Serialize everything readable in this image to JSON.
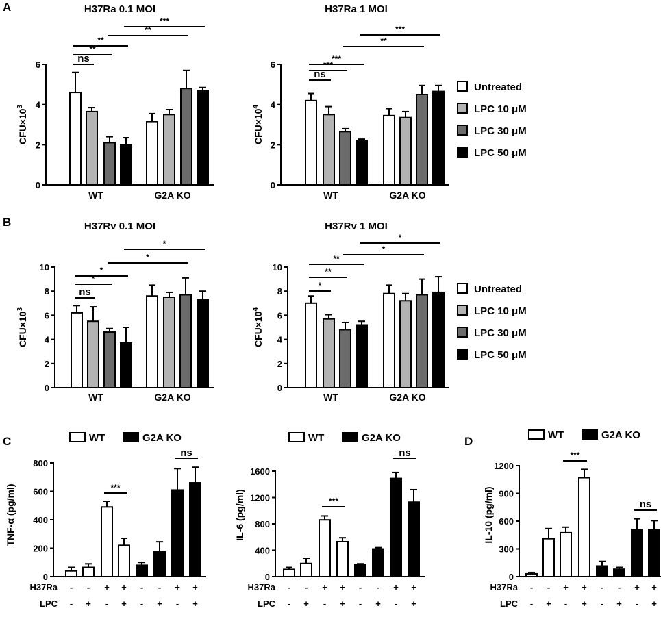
{
  "panel_labels": [
    "A",
    "B",
    "C",
    "D"
  ],
  "legend_AB": {
    "entries": [
      "Untreated",
      "LPC 10 μM",
      "LPC 30 μM",
      "LPC 50 μM"
    ],
    "colors": [
      "#ffffff",
      "#b3b3b3",
      "#6b6b6b",
      "#000000"
    ]
  },
  "legend_CD": {
    "entries": [
      "WT",
      "G2A KO"
    ],
    "colors": [
      "#ffffff",
      "#000000"
    ]
  },
  "conditions": {
    "row_labels": [
      "H37Ra",
      "LPC"
    ],
    "h37ra": [
      "-",
      "-",
      "+",
      "+",
      "-",
      "-",
      "+",
      "+"
    ],
    "lpc": [
      "-",
      "+",
      "-",
      "+",
      "-",
      "+",
      "-",
      "+"
    ]
  },
  "chart_data": [
    {
      "id": "A1",
      "type": "bar",
      "title": "H37Ra 0.1 MOI",
      "ylabel": "CFU×10",
      "ylabel_exp": "3",
      "ylim": [
        0,
        6
      ],
      "yticks": [
        "0",
        "2",
        "4",
        "6"
      ],
      "groups": [
        "WT",
        "G2A KO"
      ],
      "series": [
        {
          "name": "Untreated",
          "values": [
            4.6,
            3.15
          ],
          "errors": [
            1.0,
            0.4
          ]
        },
        {
          "name": "LPC 10 μM",
          "values": [
            3.65,
            3.5
          ],
          "errors": [
            0.2,
            0.25
          ]
        },
        {
          "name": "LPC 30 μM",
          "values": [
            2.1,
            4.8
          ],
          "errors": [
            0.3,
            0.9
          ]
        },
        {
          "name": "LPC 50 μM",
          "values": [
            2.0,
            4.7
          ],
          "errors": [
            0.35,
            0.15
          ]
        }
      ],
      "significance": [
        {
          "a": 0,
          "b": 1,
          "label": "ns"
        },
        {
          "a": 0,
          "b": 2,
          "label": "**"
        },
        {
          "a": 0,
          "b": 3,
          "label": "**"
        },
        {
          "a": 2,
          "b": 6,
          "label": "**"
        },
        {
          "a": 3,
          "b": 7,
          "label": "***"
        }
      ]
    },
    {
      "id": "A2",
      "type": "bar",
      "title": "H37Ra 1 MOI",
      "ylabel": "CFU×10",
      "ylabel_exp": "4",
      "ylim": [
        0,
        6
      ],
      "yticks": [
        "0",
        "2",
        "4",
        "6"
      ],
      "groups": [
        "WT",
        "G2A KO"
      ],
      "series": [
        {
          "name": "Untreated",
          "values": [
            4.2,
            3.45
          ],
          "errors": [
            0.35,
            0.35
          ]
        },
        {
          "name": "LPC 10 μM",
          "values": [
            3.5,
            3.35
          ],
          "errors": [
            0.4,
            0.3
          ]
        },
        {
          "name": "LPC 30 μM",
          "values": [
            2.65,
            4.5
          ],
          "errors": [
            0.15,
            0.45
          ]
        },
        {
          "name": "LPC 50 μM",
          "values": [
            2.2,
            4.65
          ],
          "errors": [
            0.08,
            0.3
          ]
        }
      ],
      "significance": [
        {
          "a": 0,
          "b": 1,
          "label": "ns"
        },
        {
          "a": 0,
          "b": 2,
          "label": "***"
        },
        {
          "a": 0,
          "b": 3,
          "label": "***"
        },
        {
          "a": 2,
          "b": 6,
          "label": "**"
        },
        {
          "a": 3,
          "b": 7,
          "label": "***"
        }
      ]
    },
    {
      "id": "B1",
      "type": "bar",
      "title": "H37Rv 0.1 MOI",
      "ylabel": "CFU×10",
      "ylabel_exp": "3",
      "ylim": [
        0,
        10
      ],
      "yticks": [
        "0",
        "2",
        "4",
        "6",
        "8",
        "10"
      ],
      "groups": [
        "WT",
        "G2A KO"
      ],
      "series": [
        {
          "name": "Untreated",
          "values": [
            6.2,
            7.6
          ],
          "errors": [
            0.6,
            0.9
          ]
        },
        {
          "name": "LPC 10 μM",
          "values": [
            5.5,
            7.5
          ],
          "errors": [
            1.2,
            0.4
          ]
        },
        {
          "name": "LPC 30 μM",
          "values": [
            4.6,
            7.7
          ],
          "errors": [
            0.3,
            1.4
          ]
        },
        {
          "name": "LPC 50 μM",
          "values": [
            3.7,
            7.3
          ],
          "errors": [
            1.3,
            0.7
          ]
        }
      ],
      "significance": [
        {
          "a": 0,
          "b": 1,
          "label": "ns"
        },
        {
          "a": 0,
          "b": 2,
          "label": "*"
        },
        {
          "a": 0,
          "b": 3,
          "label": "*"
        },
        {
          "a": 2,
          "b": 6,
          "label": "*"
        },
        {
          "a": 3,
          "b": 7,
          "label": "*"
        }
      ]
    },
    {
      "id": "B2",
      "type": "bar",
      "title": "H37Rv 1 MOI",
      "ylabel": "CFU×10",
      "ylabel_exp": "4",
      "ylim": [
        0,
        10
      ],
      "yticks": [
        "0",
        "2",
        "4",
        "6",
        "8",
        "10"
      ],
      "groups": [
        "WT",
        "G2A KO"
      ],
      "series": [
        {
          "name": "Untreated",
          "values": [
            7.0,
            7.8
          ],
          "errors": [
            0.6,
            0.7
          ]
        },
        {
          "name": "LPC 10 μM",
          "values": [
            5.7,
            7.2
          ],
          "errors": [
            0.35,
            0.6
          ]
        },
        {
          "name": "LPC 30 μM",
          "values": [
            4.8,
            7.7
          ],
          "errors": [
            0.6,
            1.3
          ]
        },
        {
          "name": "LPC 50 μM",
          "values": [
            5.2,
            7.9
          ],
          "errors": [
            0.3,
            1.3
          ]
        }
      ],
      "significance": [
        {
          "a": 0,
          "b": 1,
          "label": "*"
        },
        {
          "a": 0,
          "b": 2,
          "label": "**"
        },
        {
          "a": 0,
          "b": 3,
          "label": "**"
        },
        {
          "a": 2,
          "b": 6,
          "label": "*"
        },
        {
          "a": 3,
          "b": 7,
          "label": "*"
        }
      ]
    },
    {
      "id": "C1",
      "type": "bar",
      "title": "",
      "ylabel": "TNF-α (pg/ml)",
      "ylim": [
        0,
        800
      ],
      "yticks": [
        "0",
        "200",
        "400",
        "600",
        "800"
      ],
      "series": [
        {
          "name": "WT",
          "values": [
            40,
            65,
            490,
            220
          ],
          "errors": [
            25,
            25,
            40,
            50
          ]
        },
        {
          "name": "G2A KO",
          "values": [
            80,
            175,
            610,
            660
          ],
          "errors": [
            20,
            70,
            150,
            110
          ]
        }
      ],
      "significance": [
        {
          "a": 2,
          "b": 3,
          "label": "***"
        },
        {
          "a": 6,
          "b": 7,
          "label": "ns"
        }
      ]
    },
    {
      "id": "C2",
      "type": "bar",
      "title": "",
      "ylabel": "IL-6 (pg/ml)",
      "ylim": [
        0,
        1800
      ],
      "yticks": [
        "0",
        "400",
        "800",
        "1200",
        "1600"
      ],
      "series": [
        {
          "name": "WT",
          "values": [
            110,
            200,
            860,
            530
          ],
          "errors": [
            30,
            70,
            60,
            60
          ]
        },
        {
          "name": "G2A KO",
          "values": [
            180,
            420,
            1490,
            1130
          ],
          "errors": [
            15,
            20,
            90,
            190
          ]
        }
      ],
      "significance": [
        {
          "a": 2,
          "b": 3,
          "label": "***"
        },
        {
          "a": 6,
          "b": 7,
          "label": "ns"
        }
      ]
    },
    {
      "id": "D1",
      "type": "bar",
      "title": "",
      "ylabel": "IL-10 (pg/ml)",
      "ylim": [
        0,
        1350
      ],
      "yticks": [
        "0",
        "300",
        "600",
        "900",
        "1200"
      ],
      "series": [
        {
          "name": "WT",
          "values": [
            30,
            410,
            475,
            1070
          ],
          "errors": [
            15,
            110,
            60,
            90
          ]
        },
        {
          "name": "G2A KO",
          "values": [
            115,
            80,
            510,
            510
          ],
          "errors": [
            50,
            20,
            115,
            95
          ]
        }
      ],
      "significance": [
        {
          "a": 2,
          "b": 3,
          "label": "***"
        },
        {
          "a": 6,
          "b": 7,
          "label": "ns"
        }
      ]
    }
  ]
}
